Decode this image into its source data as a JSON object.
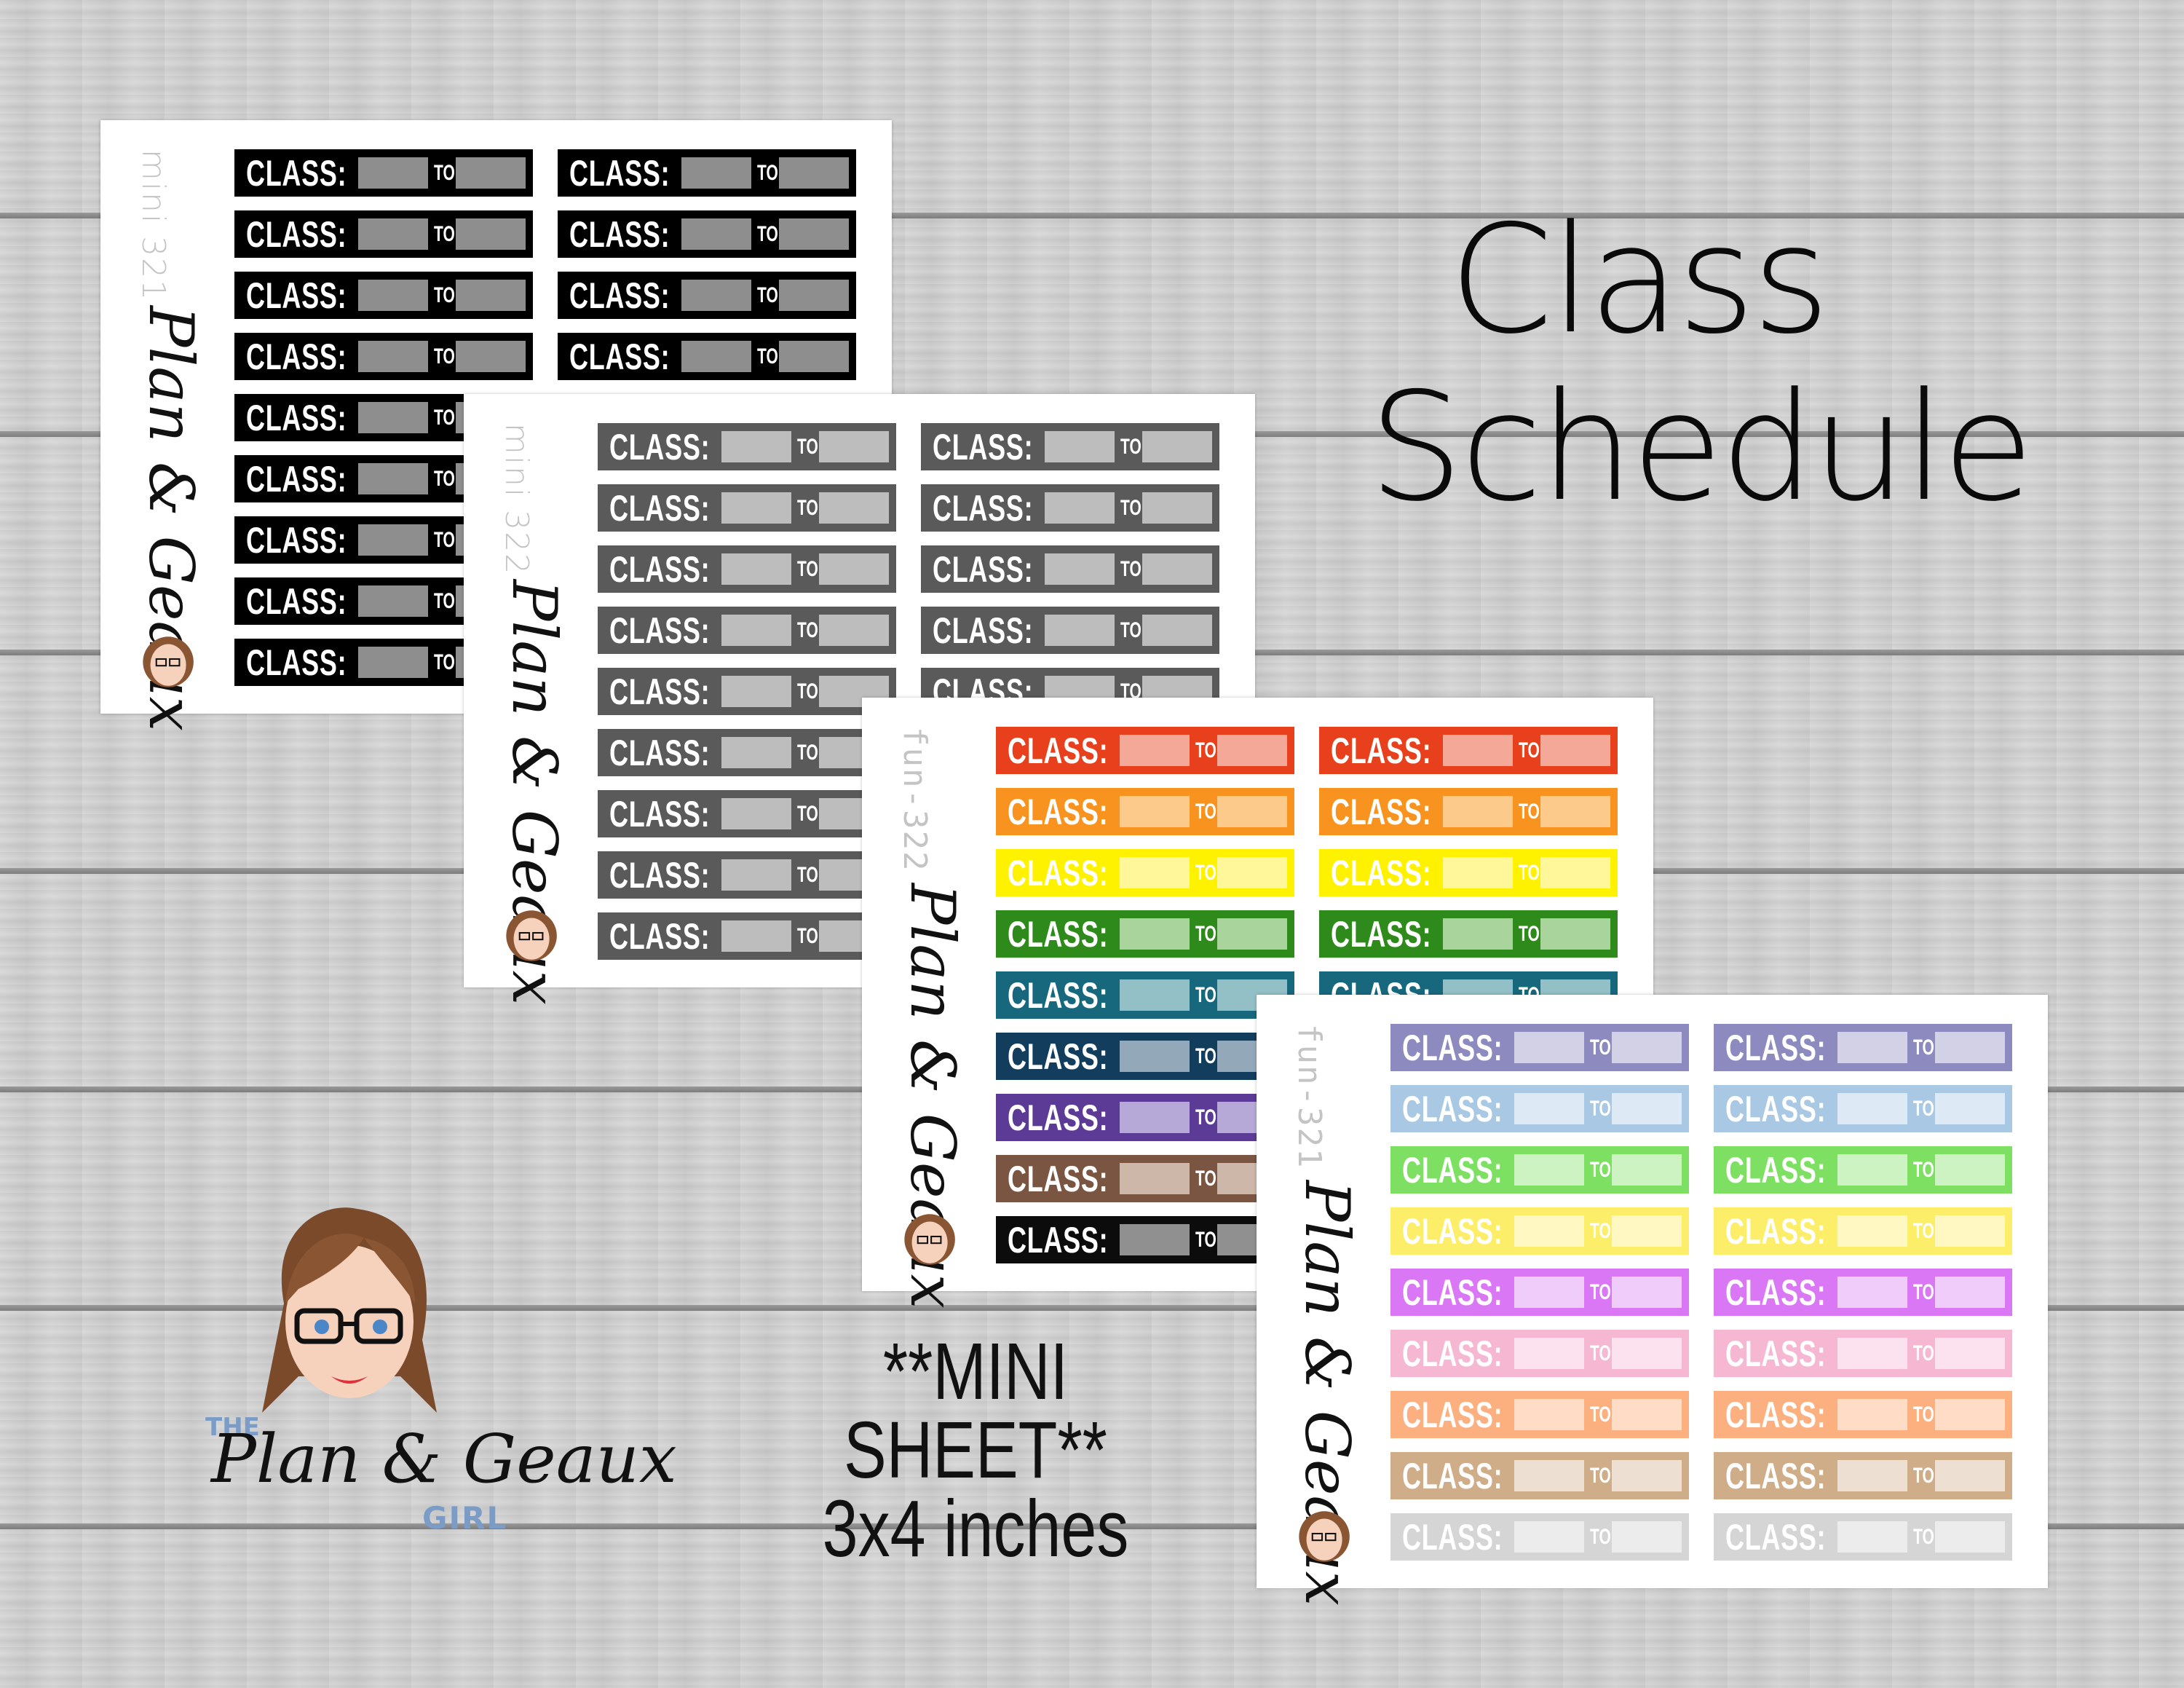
{
  "title": {
    "line1": "Class",
    "line2": "Schedule"
  },
  "mini_note": {
    "line1": "**MINI SHEET**",
    "line2": "3x4 inches"
  },
  "logo": {
    "the": "THE",
    "name": "Plan & Geaux",
    "girl": "GIRL"
  },
  "sticker": {
    "class_label": "CLASS:",
    "to_label": "TO"
  },
  "sheets": [
    {
      "code": "mini 321",
      "brand": "Plan & Geaux",
      "rows": [
        [
          "#000000",
          "#8e8e8e"
        ],
        [
          "#000000",
          "#8e8e8e"
        ],
        [
          "#000000",
          "#8e8e8e"
        ],
        [
          "#000000",
          "#8e8e8e"
        ],
        [
          "#000000",
          "#8e8e8e"
        ],
        [
          "#000000",
          "#8e8e8e"
        ],
        [
          "#000000",
          "#8e8e8e"
        ],
        [
          "#000000",
          "#8e8e8e"
        ],
        [
          "#000000",
          "#8e8e8e"
        ]
      ]
    },
    {
      "code": "mini 322",
      "brand": "Plan & Geaux",
      "rows": [
        [
          "#5a5a5a",
          "#bdbdbd"
        ],
        [
          "#5a5a5a",
          "#bdbdbd"
        ],
        [
          "#5a5a5a",
          "#bdbdbd"
        ],
        [
          "#5a5a5a",
          "#bdbdbd"
        ],
        [
          "#5a5a5a",
          "#bdbdbd"
        ],
        [
          "#5a5a5a",
          "#bdbdbd"
        ],
        [
          "#5a5a5a",
          "#bdbdbd"
        ],
        [
          "#5a5a5a",
          "#bdbdbd"
        ],
        [
          "#5a5a5a",
          "#bdbdbd"
        ]
      ]
    },
    {
      "code": "fun-322",
      "brand": "Plan & Geaux",
      "rows": [
        [
          "#e8401c",
          "#f4a898"
        ],
        [
          "#f7931e",
          "#fccb8c"
        ],
        [
          "#fff200",
          "#fff79a"
        ],
        [
          "#2f8a1c",
          "#a9d59c"
        ],
        [
          "#17687d",
          "#93bfc7"
        ],
        [
          "#133d5c",
          "#93a8b8"
        ],
        [
          "#5b3b95",
          "#b6a8d7"
        ],
        [
          "#7a5642",
          "#cdb7a9"
        ],
        [
          "#0c0c0c",
          "#909090"
        ]
      ]
    },
    {
      "code": "fun-321",
      "brand": "Plan & Geaux",
      "rows": [
        [
          "#8d8abf",
          "#d2d1e6"
        ],
        [
          "#a9c8e3",
          "#dde9f5"
        ],
        [
          "#7ee062",
          "#cdf3c3"
        ],
        [
          "#fdee6a",
          "#fff8c2"
        ],
        [
          "#d977f5",
          "#f0ccfb"
        ],
        [
          "#f6b7d3",
          "#fbe2ee"
        ],
        [
          "#fcb07f",
          "#fedcc6"
        ],
        [
          "#cfad88",
          "#ede0d3"
        ],
        [
          "#d5d5d5",
          "#ececec"
        ]
      ]
    }
  ]
}
